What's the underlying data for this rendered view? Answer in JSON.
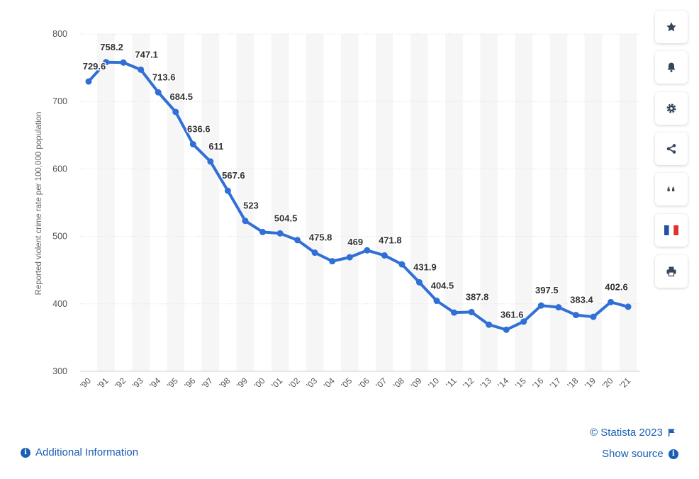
{
  "chart_data": {
    "type": "line",
    "ylabel": "Reported violent crime rate per 100,000 population",
    "ylim": [
      300,
      800
    ],
    "yticks": [
      300,
      400,
      500,
      600,
      700,
      800
    ],
    "grid": true,
    "categories": [
      "'90",
      "'91",
      "'92",
      "'93",
      "'94",
      "'95",
      "'96",
      "'97",
      "'98",
      "'99",
      "'00",
      "'01",
      "'02",
      "'03",
      "'04",
      "'05",
      "'06",
      "'07",
      "'08",
      "'09",
      "'10",
      "'11",
      "'12",
      "'13",
      "'14",
      "'15",
      "'16",
      "'17",
      "'18",
      "'19",
      "'20",
      "'21"
    ],
    "series": [
      {
        "color": "#2f6fd6",
        "values": [
          729.6,
          758.2,
          757.7,
          747.1,
          713.6,
          684.5,
          636.6,
          611,
          567.6,
          523,
          506.5,
          504.5,
          494.4,
          475.8,
          463.2,
          469,
          479.3,
          471.8,
          458.6,
          431.9,
          404.5,
          387.1,
          387.8,
          369.1,
          361.6,
          373.7,
          397.5,
          394.9,
          383.4,
          380.8,
          402.6,
          395.7
        ],
        "labels": [
          729.6,
          758.2,
          null,
          747.1,
          713.6,
          684.5,
          636.6,
          611,
          567.6,
          523,
          null,
          504.5,
          null,
          475.8,
          null,
          469,
          null,
          471.8,
          null,
          431.9,
          404.5,
          null,
          387.8,
          null,
          361.6,
          null,
          397.5,
          null,
          383.4,
          null,
          402.6,
          null
        ]
      }
    ]
  },
  "footer": {
    "copyright": "© Statista 2023",
    "show_source": "Show source",
    "additional_info": "Additional Information"
  },
  "sidebar": {
    "buttons": [
      {
        "icon": "star-icon"
      },
      {
        "icon": "bell-icon"
      },
      {
        "icon": "gear-icon"
      },
      {
        "icon": "share-icon"
      },
      {
        "icon": "quote-icon"
      },
      {
        "icon": "french-flag-icon"
      },
      {
        "icon": "print-icon"
      }
    ]
  }
}
